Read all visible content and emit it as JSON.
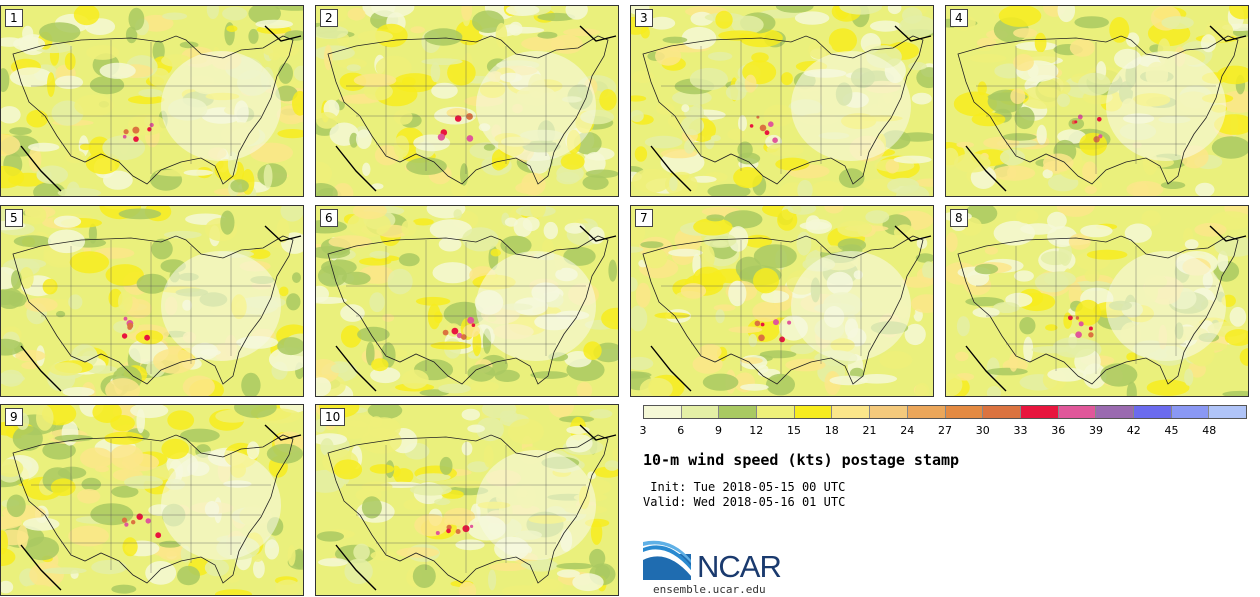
{
  "panels": [
    {
      "label": "1"
    },
    {
      "label": "2"
    },
    {
      "label": "3"
    },
    {
      "label": "4"
    },
    {
      "label": "5"
    },
    {
      "label": "6"
    },
    {
      "label": "7"
    },
    {
      "label": "8"
    },
    {
      "label": "9"
    },
    {
      "label": "10"
    }
  ],
  "colorbar": {
    "colors": [
      "#f5f8d6",
      "#e4efa6",
      "#a9c962",
      "#eef07a",
      "#f7ec1e",
      "#fbe68a",
      "#f4c97c",
      "#eba65a",
      "#e48a42",
      "#db7340",
      "#e8153e",
      "#e0579a",
      "#9a6ab0",
      "#6b6bee",
      "#8a98f4",
      "#b0c4f8"
    ],
    "ticks": [
      "3",
      "6",
      "9",
      "12",
      "15",
      "18",
      "21",
      "24",
      "27",
      "30",
      "33",
      "36",
      "39",
      "42",
      "45",
      "48"
    ]
  },
  "title": "10-m wind speed (kts) postage stamp",
  "init_text": " Init: Tue 2018-05-15 00 UTC",
  "valid_text": "Valid: Wed 2018-05-16 01 UTC",
  "logo": {
    "name": "NCAR"
  },
  "url": "ensemble.ucar.edu"
}
